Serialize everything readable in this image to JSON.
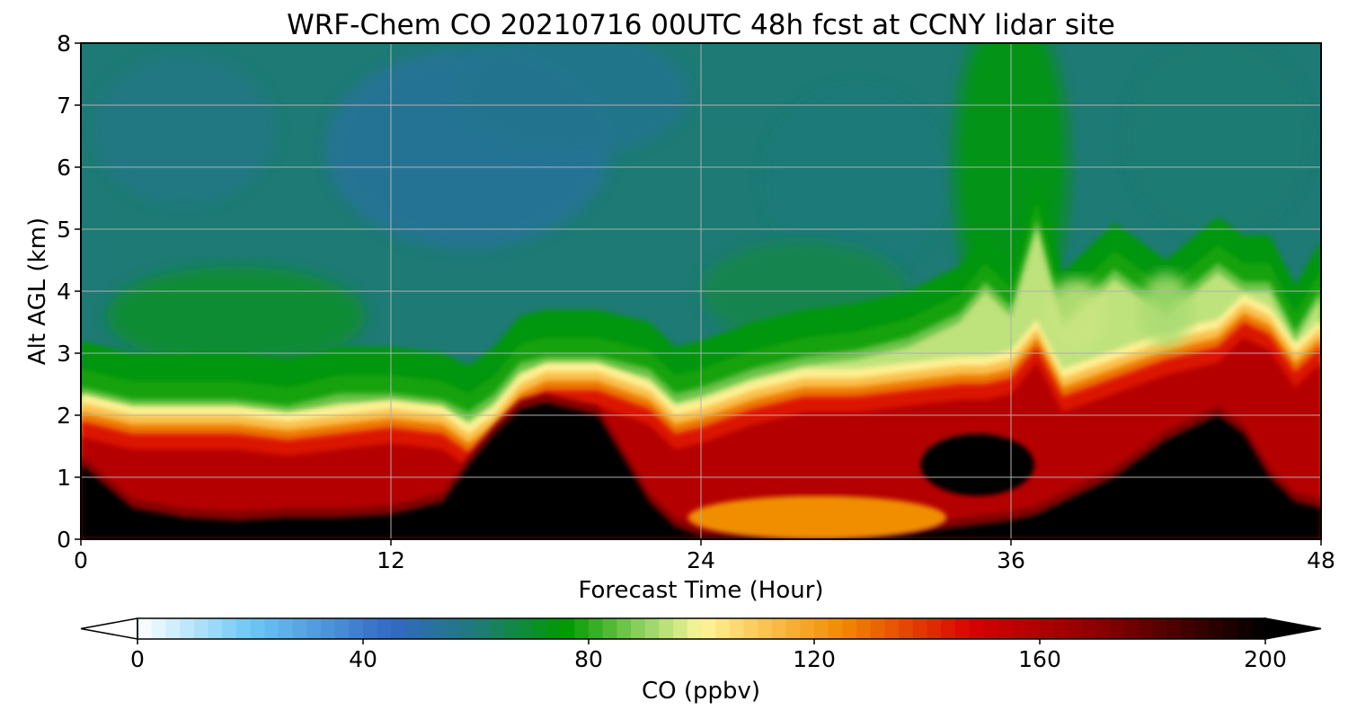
{
  "chart_data": {
    "type": "heatmap",
    "subtype": "filled-contour time-height cross section",
    "title": "WRF-Chem CO  20210716 00UTC 48h fcst at CCNY lidar site",
    "xlabel": "Forecast Time (Hour)",
    "ylabel": "Alt AGL (km)",
    "xlim": [
      0,
      48
    ],
    "ylim": [
      0,
      8
    ],
    "xticks": [
      "0",
      "12",
      "24",
      "36",
      "48"
    ],
    "yticks": [
      "0",
      "1",
      "2",
      "3",
      "4",
      "5",
      "6",
      "7",
      "8"
    ],
    "grid": true,
    "colorbar": {
      "label": "CO  (ppbv)",
      "range": [
        0,
        200
      ],
      "ticks": [
        "0",
        "40",
        "80",
        "120",
        "160",
        "200"
      ],
      "extend": "both",
      "stops": [
        {
          "value": 0,
          "color": "#ffffff"
        },
        {
          "value": 20,
          "color": "#6cc8f5"
        },
        {
          "value": 45,
          "color": "#3368c4"
        },
        {
          "value": 60,
          "color": "#1f7a7a"
        },
        {
          "value": 76,
          "color": "#009a00"
        },
        {
          "value": 92,
          "color": "#a9db72"
        },
        {
          "value": 100,
          "color": "#fdf69a"
        },
        {
          "value": 110,
          "color": "#fcc85a"
        },
        {
          "value": 125,
          "color": "#f08a00"
        },
        {
          "value": 148,
          "color": "#d80000"
        },
        {
          "value": 170,
          "color": "#8c0000"
        },
        {
          "value": 200,
          "color": "#000000"
        }
      ]
    },
    "hours": [
      0,
      2,
      4,
      6,
      8,
      10,
      12,
      14,
      15,
      16,
      17,
      18,
      20,
      22,
      23,
      24,
      26,
      28,
      30,
      32,
      34,
      35,
      36,
      37,
      38,
      40,
      42,
      44,
      45,
      46,
      47,
      48
    ],
    "levels": [
      {
        "name": "surface_polluted_top_km",
        "values": [
          1.2,
          0.5,
          0.35,
          0.3,
          0.35,
          0.35,
          0.4,
          0.6,
          1.2,
          1.7,
          2.1,
          2.2,
          2.0,
          0.6,
          0.2,
          0.05,
          0.05,
          0.0,
          0.05,
          0.1,
          0.2,
          0.25,
          0.3,
          0.4,
          0.6,
          1.0,
          1.6,
          2.0,
          1.7,
          1.0,
          0.6,
          0.5
        ]
      },
      {
        "name": "boundary_layer_top_km",
        "values": [
          2.2,
          2.0,
          2.0,
          2.0,
          1.9,
          2.0,
          2.1,
          2.0,
          1.7,
          2.0,
          2.5,
          2.7,
          2.7,
          2.4,
          2.0,
          2.1,
          2.4,
          2.6,
          2.6,
          2.7,
          2.8,
          2.8,
          2.9,
          3.4,
          2.6,
          2.9,
          3.2,
          3.4,
          3.8,
          3.6,
          3.0,
          3.4
        ]
      },
      {
        "name": "mixing_layer_top_km",
        "values": [
          2.3,
          2.1,
          2.1,
          2.1,
          2.0,
          2.2,
          2.2,
          2.1,
          1.9,
          2.2,
          2.7,
          2.8,
          2.8,
          2.6,
          2.2,
          2.3,
          2.6,
          2.8,
          2.9,
          3.1,
          3.5,
          4.0,
          3.6,
          5.0,
          3.4,
          4.2,
          3.6,
          4.3,
          4.0,
          4.0,
          3.2,
          3.9
        ]
      }
    ],
    "features": [
      {
        "hours": [
          16,
          21
        ],
        "alt_km": [
          0,
          2.2
        ],
        "co_ppbv": ">200"
      },
      {
        "hours": [
          33,
          36
        ],
        "alt_km": [
          0.8,
          1.7
        ],
        "co_ppbv": ">200"
      },
      {
        "hours": [
          38,
          47
        ],
        "alt_km": [
          0,
          2.0
        ],
        "co_ppbv": ">200"
      },
      {
        "hours": [
          10,
          20
        ],
        "alt_km": [
          4.5,
          7.5
        ],
        "co_ppbv": "~55"
      },
      {
        "hours": [
          37,
          42
        ],
        "alt_km": [
          3.0,
          5.0
        ],
        "co_ppbv": "~92"
      }
    ]
  }
}
